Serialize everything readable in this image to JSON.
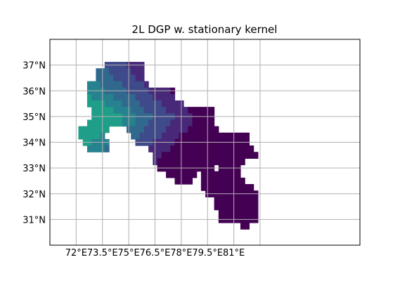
{
  "chart_data": {
    "type": "heatmap",
    "title": "2L DGP w. stationary kernel",
    "xlabel": "",
    "ylabel": "",
    "xlim": [
      70.5,
      88.2
    ],
    "ylim": [
      30.0,
      38.0
    ],
    "grid": true,
    "x_ticks": [
      {
        "value": 72.0,
        "label": "72°E"
      },
      {
        "value": 73.5,
        "label": "73.5°E"
      },
      {
        "value": 75.0,
        "label": "75°E"
      },
      {
        "value": 76.5,
        "label": "76.5°E"
      },
      {
        "value": 78.0,
        "label": "78°E"
      },
      {
        "value": 79.5,
        "label": "79.5°E"
      },
      {
        "value": 81.0,
        "label": "81°E"
      }
    ],
    "x_grid_extra": [
      82.5
    ],
    "y_ticks": [
      {
        "value": 31.0,
        "label": "31°N"
      },
      {
        "value": 32.0,
        "label": "32°N"
      },
      {
        "value": 33.0,
        "label": "33°N"
      },
      {
        "value": 34.0,
        "label": "34°N"
      },
      {
        "value": 35.0,
        "label": "35°N"
      },
      {
        "value": 36.0,
        "label": "36°N"
      },
      {
        "value": 37.0,
        "label": "37°N"
      }
    ],
    "cell_size_deg": 0.25,
    "colormap": [
      "#440154",
      "#482878",
      "#3e4a89",
      "#31688e",
      "#26828e",
      "#1f9e89"
    ],
    "row_spans": [
      {
        "lat": 37.0,
        "spans": [
          [
            73.75,
            75.75
          ]
        ]
      },
      {
        "lat": 36.75,
        "spans": [
          [
            73.25,
            75.75
          ]
        ]
      },
      {
        "lat": 36.5,
        "spans": [
          [
            73.25,
            75.75
          ]
        ]
      },
      {
        "lat": 36.25,
        "spans": [
          [
            72.75,
            76.0
          ]
        ]
      },
      {
        "lat": 36.0,
        "spans": [
          [
            72.75,
            77.5
          ]
        ]
      },
      {
        "lat": 35.75,
        "spans": [
          [
            72.75,
            77.5
          ]
        ]
      },
      {
        "lat": 35.5,
        "spans": [
          [
            72.75,
            78.0
          ]
        ]
      },
      {
        "lat": 35.25,
        "spans": [
          [
            73.0,
            79.75
          ]
        ]
      },
      {
        "lat": 35.0,
        "spans": [
          [
            73.0,
            79.75
          ]
        ]
      },
      {
        "lat": 34.75,
        "spans": [
          [
            72.75,
            79.75
          ]
        ]
      },
      {
        "lat": 34.5,
        "spans": [
          [
            72.25,
            73.75
          ],
          [
            75.0,
            80.0
          ]
        ]
      },
      {
        "lat": 34.25,
        "spans": [
          [
            72.25,
            73.5
          ],
          [
            75.25,
            81.75
          ]
        ]
      },
      {
        "lat": 34.0,
        "spans": [
          [
            72.5,
            73.75
          ],
          [
            75.5,
            81.75
          ]
        ]
      },
      {
        "lat": 33.75,
        "spans": [
          [
            72.75,
            73.75
          ],
          [
            76.25,
            82.0
          ]
        ]
      },
      {
        "lat": 33.5,
        "spans": [
          [
            76.5,
            82.25
          ]
        ]
      },
      {
        "lat": 33.25,
        "spans": [
          [
            76.5,
            80.5
          ],
          [
            80.75,
            81.5
          ]
        ]
      },
      {
        "lat": 33.0,
        "spans": [
          [
            76.75,
            79.75
          ],
          [
            80.25,
            81.25
          ]
        ]
      },
      {
        "lat": 32.75,
        "spans": [
          [
            77.25,
            78.75
          ],
          [
            79.25,
            81.25
          ]
        ]
      },
      {
        "lat": 32.5,
        "spans": [
          [
            77.75,
            78.5
          ],
          [
            79.25,
            81.5
          ]
        ]
      },
      {
        "lat": 32.25,
        "spans": [
          [
            79.25,
            79.75
          ],
          [
            80.0,
            82.0
          ]
        ]
      },
      {
        "lat": 32.0,
        "spans": [
          [
            79.5,
            82.25
          ]
        ]
      },
      {
        "lat": 31.75,
        "spans": [
          [
            80.0,
            82.25
          ]
        ]
      },
      {
        "lat": 31.5,
        "spans": [
          [
            80.0,
            82.25
          ]
        ]
      },
      {
        "lat": 31.25,
        "spans": [
          [
            80.25,
            82.25
          ]
        ]
      },
      {
        "lat": 31.0,
        "spans": [
          [
            80.25,
            82.25
          ]
        ]
      },
      {
        "lat": 30.75,
        "spans": [
          [
            81.5,
            81.75
          ]
        ]
      }
    ]
  }
}
